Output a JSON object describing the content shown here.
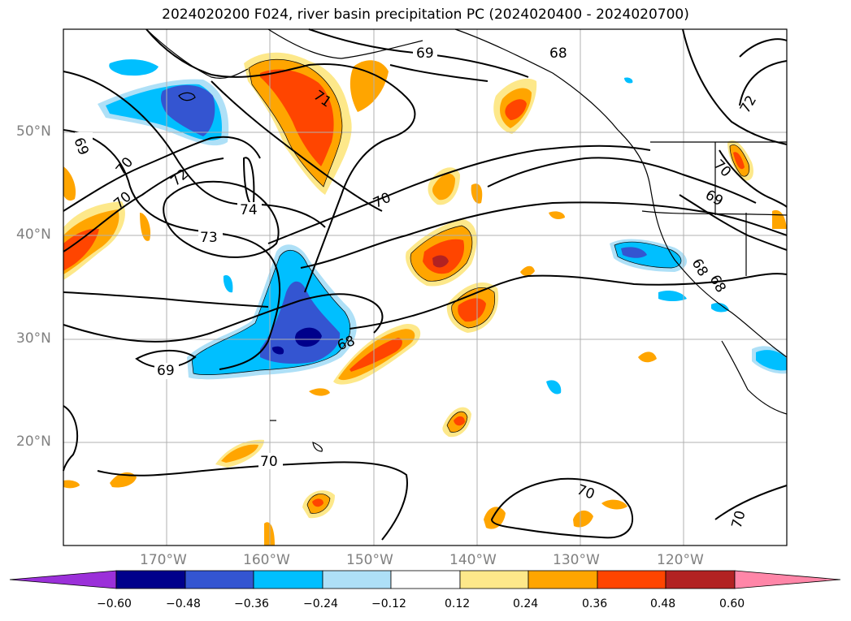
{
  "title": "2024020200 F024, river basin precipitation PC (2024020400 - 2024020700)",
  "map": {
    "lat_labels": [
      "50°N",
      "40°N",
      "30°N",
      "20°N"
    ],
    "lon_labels": [
      "170°W",
      "160°W",
      "150°W",
      "140°W",
      "130°W",
      "120°W"
    ],
    "contour_labels": [
      "69",
      "68",
      "71",
      "72",
      "69",
      "70",
      "72",
      "74",
      "73",
      "70",
      "70",
      "69",
      "68",
      "68",
      "69",
      "68",
      "70",
      "70",
      "70"
    ]
  },
  "colorbar": {
    "ticks": [
      "−0.60",
      "−0.48",
      "−0.36",
      "−0.24",
      "−0.12",
      "0.12",
      "0.24",
      "0.36",
      "0.48",
      "0.60"
    ],
    "colors": [
      "#9b30d9",
      "#00008b",
      "#3455d1",
      "#00bfff",
      "#aee0f7",
      "#ffffff",
      "#fde88a",
      "#ffa500",
      "#ff4500",
      "#b22222",
      "#ff86a8"
    ]
  }
}
